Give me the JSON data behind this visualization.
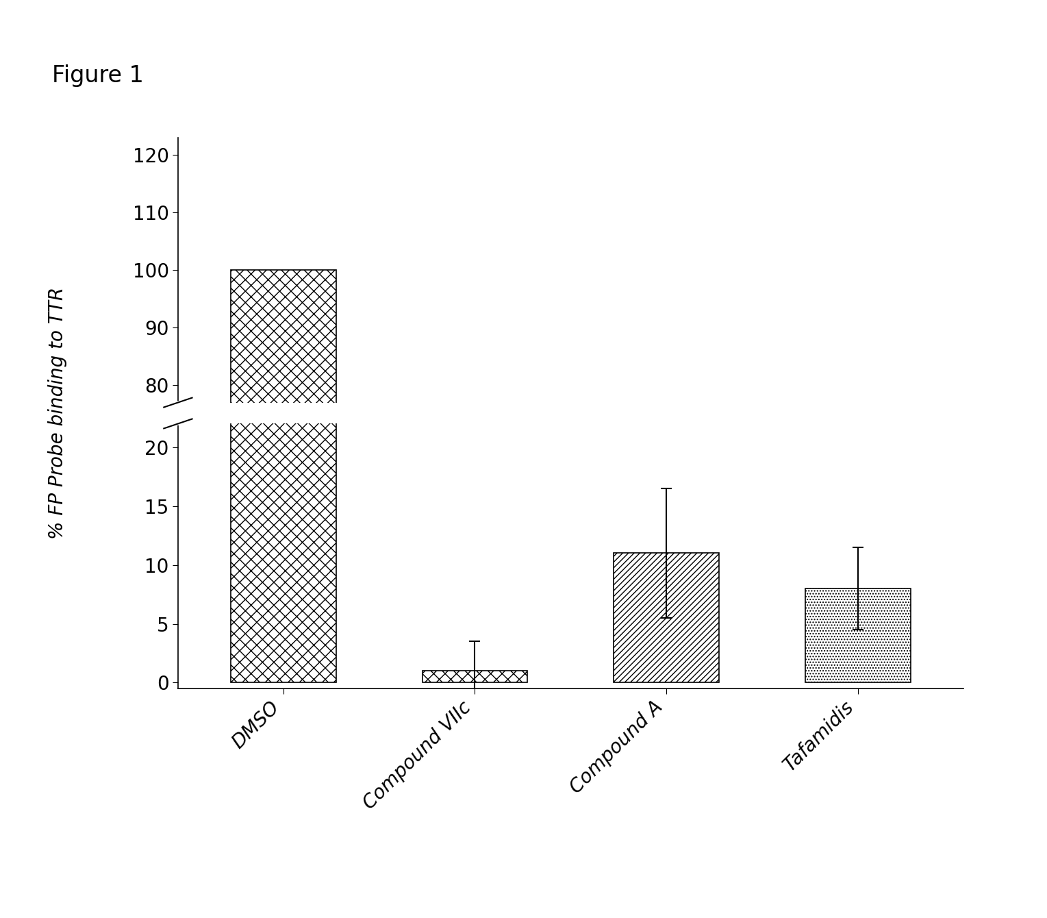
{
  "figure_label": "Figure 1",
  "ylabel": "% FP Probe binding to TTR",
  "categories": [
    "DMSO",
    "Compound VIIc",
    "Compound A",
    "Tafamidis"
  ],
  "values": [
    100,
    1.0,
    11.0,
    8.0
  ],
  "errors": [
    0,
    2.5,
    5.5,
    3.5
  ],
  "bar_width": 0.55,
  "background_color": "#ffffff",
  "bar_edge_color": "#000000",
  "tick_label_fontsize": 20,
  "axis_label_fontsize": 20,
  "figure_label_fontsize": 24,
  "xticklabel_fontsize": 20,
  "yticks_upper": [
    80,
    90,
    100,
    110,
    120
  ],
  "yticks_lower": [
    0,
    5,
    10,
    15,
    20
  ],
  "ylim_upper": [
    77,
    123
  ],
  "ylim_lower": [
    -0.5,
    22
  ],
  "hatch_patterns": [
    "xx",
    "xx",
    "////",
    "...."
  ],
  "error_capsize": 6,
  "error_linewidth": 1.5
}
